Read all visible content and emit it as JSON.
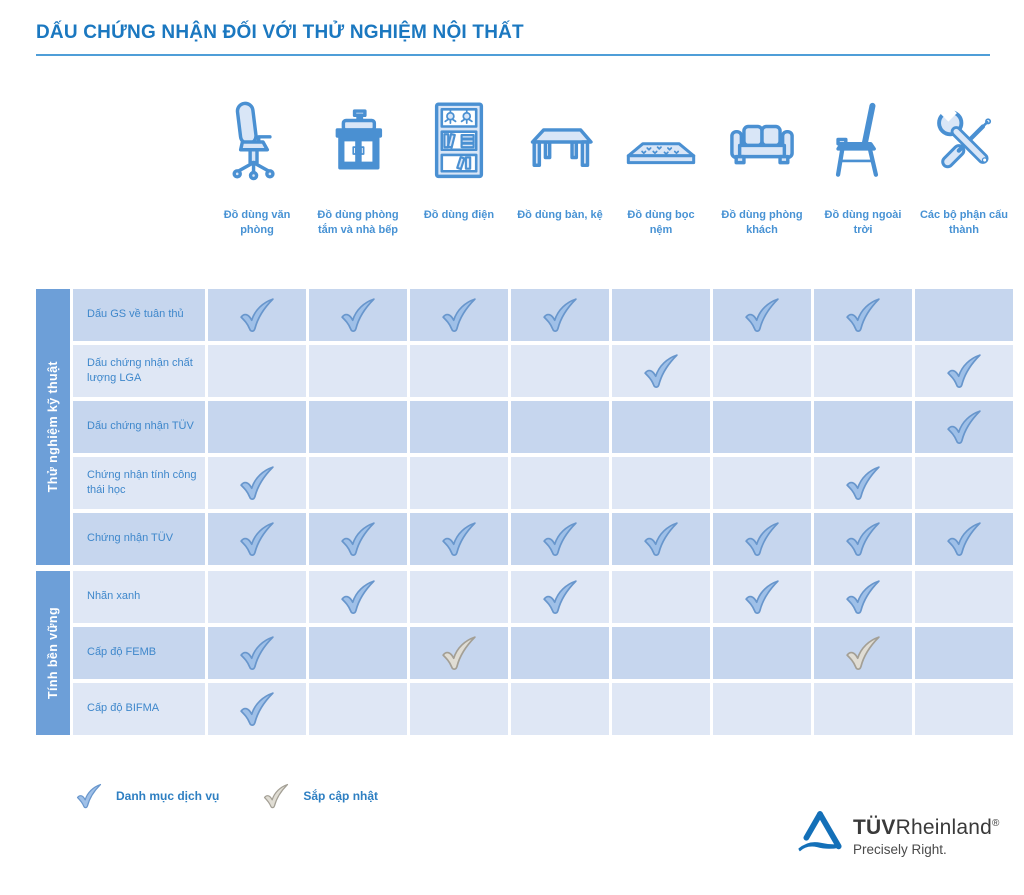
{
  "title": "DẤU CHỨNG NHẬN ĐỐI VỚI THỬ NGHIỆM NỘI THẤT",
  "columns": [
    {
      "label": "Đồ dùng văn phòng",
      "icon": "office-chair-icon"
    },
    {
      "label": "Đồ dùng phòng tắm và nhà bếp",
      "icon": "bathroom-cabinet-icon"
    },
    {
      "label": "Đồ dùng điện",
      "icon": "bookshelf-lamps-icon"
    },
    {
      "label": "Đồ dùng bàn, kệ",
      "icon": "table-icon"
    },
    {
      "label": "Đồ dùng bọc nệm",
      "icon": "mattress-icon"
    },
    {
      "label": "Đồ dùng phòng khách",
      "icon": "sofa-icon"
    },
    {
      "label": "Đồ dùng ngoài trời",
      "icon": "chair-icon"
    },
    {
      "label": "Các bộ phận cấu thành",
      "icon": "tools-icon"
    }
  ],
  "groups": [
    {
      "label": "Thử nghiệm kỹ thuật",
      "rows": [
        {
          "label": "Dấu GS về tuân thủ",
          "cells": [
            "blue",
            "blue",
            "blue",
            "blue",
            null,
            "blue",
            "blue",
            null
          ]
        },
        {
          "label": "Dấu chứng nhận chất lượng LGA",
          "cells": [
            null,
            null,
            null,
            null,
            "blue",
            null,
            null,
            "blue"
          ]
        },
        {
          "label": "Dấu chứng nhận TÜV",
          "cells": [
            null,
            null,
            null,
            null,
            null,
            null,
            null,
            "blue"
          ]
        },
        {
          "label": "Chứng nhận tính công thái học",
          "cells": [
            "blue",
            null,
            null,
            null,
            null,
            null,
            "blue",
            null
          ]
        },
        {
          "label": "Chứng nhận TÜV",
          "cells": [
            "blue",
            "blue",
            "blue",
            "blue",
            "blue",
            "blue",
            "blue",
            "blue"
          ]
        }
      ]
    },
    {
      "label": "Tính bền vững",
      "rows": [
        {
          "label": "Nhãn xanh",
          "cells": [
            null,
            "blue",
            null,
            "blue",
            null,
            "blue",
            "blue",
            null
          ]
        },
        {
          "label": "Cấp độ FEMB",
          "cells": [
            "blue",
            null,
            "gray",
            null,
            null,
            null,
            "gray",
            null
          ]
        },
        {
          "label": "Cấp độ BIFMA",
          "cells": [
            "blue",
            null,
            null,
            null,
            null,
            null,
            null,
            null
          ]
        }
      ]
    }
  ],
  "legend": [
    {
      "type": "blue",
      "label": "Danh mục dịch vụ"
    },
    {
      "type": "gray",
      "label": "Sắp cập nhật"
    }
  ],
  "logo": {
    "tuv": "TÜV",
    "rheinland": "Rheinland",
    "reg": "®",
    "tagline": "Precisely Right."
  },
  "colors": {
    "title_blue": "#1b78c0",
    "header_text_blue": "#4792d4",
    "row_label_blue": "#3e87cb",
    "sidebar_blue": "#6d9fd8",
    "row_dark": "#c6d6ee",
    "row_light": "#dfe7f5",
    "check_blue_fill": "#9fc0e8",
    "check_blue_stroke": "#6896cc",
    "check_gray_fill": "#e0ddd4",
    "check_gray_stroke": "#a39f95",
    "icon_stroke": "#4a90d2",
    "icon_fill": "#d9e6f7",
    "logo_blue": "#1470b8"
  }
}
